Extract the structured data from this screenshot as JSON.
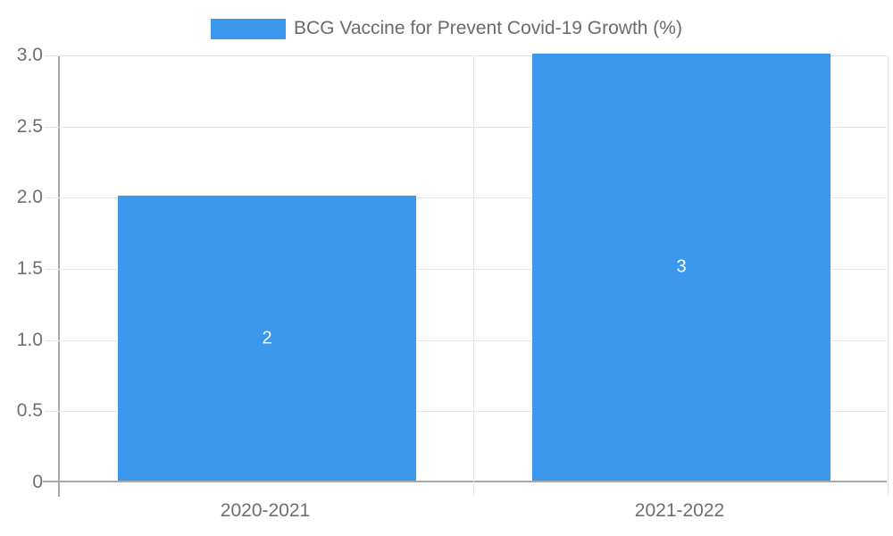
{
  "legend": {
    "label": "BCG Vaccine for Prevent Covid-19 Growth (%)"
  },
  "colors": {
    "bar": "#3b98ed",
    "grid": "#e5e5e5",
    "axis": "#a8a8a8",
    "axis_text": "#6f6f6f",
    "legend_text": "#6b6b6b",
    "bar_label_text": "#ffffff",
    "background": "#ffffff"
  },
  "chart_data": {
    "type": "bar",
    "title": "BCG Vaccine for Prevent Covid-19 Growth (%)",
    "categories": [
      "2020-2021",
      "2021-2022"
    ],
    "series": [
      {
        "name": "BCG Vaccine for Prevent Covid-19 Growth (%)",
        "values": [
          2,
          3
        ],
        "bar_labels": [
          "2",
          "3"
        ]
      }
    ],
    "xlabel": "",
    "ylabel": "",
    "ylim": [
      0,
      3
    ],
    "ytick_step": 0.5,
    "ytick_labels": [
      "0",
      "0.5",
      "1.0",
      "1.5",
      "2.0",
      "2.5",
      "3.0"
    ],
    "grid": true,
    "legend_position": "top-center"
  }
}
